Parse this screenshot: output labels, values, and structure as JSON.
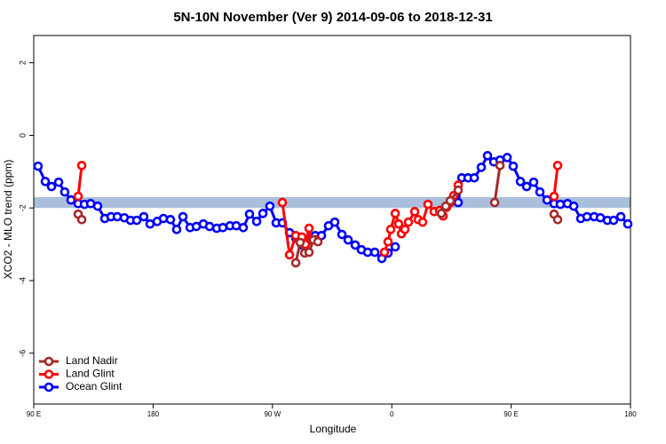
{
  "chart_data": {
    "type": "line",
    "title": "5N-10N November (Ver 9)   2014-09-06 to 2018-12-31",
    "xlabel": "Longitude",
    "ylabel": "XCO2 - MLO trend (ppm)",
    "xlim": [
      90,
      540
    ],
    "ylim": [
      -7.4,
      2.75
    ],
    "xticks": [
      {
        "value": 90,
        "label": "90 E"
      },
      180,
      {
        "value": 270,
        "label": "90 W"
      },
      {
        "value": 360,
        "label": "0"
      },
      {
        "value": 450,
        "label": "90 E"
      },
      {
        "value": 540,
        "label": "180"
      }
    ],
    "yticks": [
      2,
      0,
      -2,
      -4,
      -6
    ],
    "band": [
      -2.0,
      -1.7
    ],
    "band_color": "#a9bfdb",
    "legend": "lower left",
    "series": [
      {
        "name": "Ocean Glint",
        "color": "#0000ff",
        "x": [
          93.3,
          98.7,
          103.4,
          108.8,
          113.4,
          118.1,
          123.5,
          128.2,
          132.9,
          138.2,
          143.6,
          148.3,
          153.0,
          158.3,
          163.0,
          167.7,
          173.0,
          177.7,
          183.1,
          187.8,
          193.1,
          197.8,
          202.5,
          207.9,
          212.6,
          217.9,
          222.6,
          228.0,
          232.6,
          238.0,
          242.7,
          248.0,
          252.7,
          258.1,
          262.8,
          268.1,
          272.8,
          277.5,
          282.9,
          287.6,
          292.2,
          297.6,
          302.3,
          307.0,
          312.3,
          317.0,
          322.4,
          327.1,
          332.4,
          337.1,
          341.8,
          347.2,
          352.5,
          357.2,
          362.6,
          null,
          410.1,
          412.8,
          417.5,
          422.2,
          427.5,
          432.2,
          436.9,
          441.6,
          447.0,
          451.6,
          457.0,
          461.7,
          467.0,
          471.7,
          477.1,
          482.4,
          487.1,
          492.5,
          497.2,
          502.5,
          507.2,
          512.6,
          517.3,
          522.6,
          527.3,
          532.7,
          538.0
        ],
        "values": [
          -0.85,
          -1.27,
          -1.41,
          -1.29,
          -1.56,
          -1.78,
          -1.88,
          -1.9,
          -1.88,
          -1.95,
          -2.29,
          -2.24,
          -2.24,
          -2.27,
          -2.34,
          -2.34,
          -2.24,
          -2.44,
          -2.37,
          -2.29,
          -2.32,
          -2.59,
          -2.24,
          -2.54,
          -2.51,
          -2.44,
          -2.51,
          -2.56,
          -2.54,
          -2.49,
          -2.49,
          -2.54,
          -2.17,
          -2.37,
          -2.15,
          -1.95,
          -2.41,
          -2.41,
          -2.68,
          -2.83,
          -3.02,
          -2.88,
          -2.76,
          -2.76,
          -2.49,
          -2.39,
          -2.73,
          -2.88,
          -3.02,
          -3.15,
          -3.22,
          -3.22,
          -3.39,
          -3.24,
          -3.07,
          null,
          -1.85,
          -1.17,
          -1.17,
          -1.17,
          -0.88,
          -0.56,
          -0.73,
          -0.68,
          -0.61,
          -0.85,
          -1.27,
          -1.41,
          -1.29,
          -1.56,
          -1.78,
          -1.88,
          -1.9,
          -1.88,
          -1.95,
          -2.29,
          -2.24,
          -2.24,
          -2.27,
          -2.34,
          -2.34,
          -2.24,
          -2.44
        ]
      },
      {
        "name": "Land Glint",
        "color": "#ff0000",
        "x": [
          123.5,
          126.2,
          null,
          277.5,
          282.9,
          287.6,
          292.2,
          294.9,
          297.6,
          299.6,
          303.0,
          null,
          354.5,
          357.2,
          359.2,
          362.6,
          365.2,
          367.3,
          369.9,
          372.6,
          377.3,
          379.9,
          383.3,
          387.3,
          392.0,
          396.0,
          398.7,
          401.4,
          404.1,
          406.7,
          410.1,
          null,
          482.4,
          485.1
        ],
        "values": [
          -1.68,
          -0.83,
          null,
          -1.85,
          -3.29,
          -2.76,
          -2.8,
          -3.0,
          -2.56,
          -2.88,
          -2.88,
          null,
          -3.22,
          -2.93,
          -2.59,
          -2.15,
          -2.44,
          -2.71,
          -2.59,
          -2.39,
          -2.1,
          -2.32,
          -2.39,
          -1.9,
          -2.1,
          -2.07,
          -2.22,
          -1.98,
          -1.85,
          -1.66,
          -1.37,
          null,
          -1.68,
          -0.83
        ]
      },
      {
        "name": "Land Nadir",
        "color": "#a52a2a",
        "x": [
          123.5,
          126.2,
          null,
          287.6,
          290.9,
          294.3,
          297.6,
          300.9,
          304.3,
          null,
          397.4,
          400.7,
          404.1,
          410.1,
          null,
          437.6,
          441.6,
          null,
          482.4,
          485.1
        ],
        "values": [
          -2.17,
          -2.32,
          null,
          -3.51,
          -2.95,
          -3.24,
          -3.22,
          -2.88,
          -2.93,
          null,
          -2.15,
          -1.95,
          -1.8,
          -1.51,
          null,
          -1.85,
          -0.83,
          null,
          -2.17,
          -2.32
        ]
      }
    ]
  }
}
